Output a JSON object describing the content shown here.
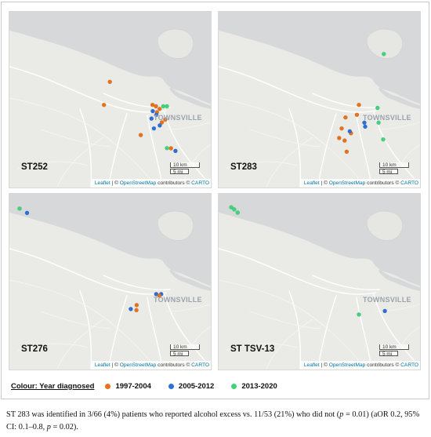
{
  "colors": {
    "1997-2004": "#e8711c",
    "2005-2012": "#2d6fd6",
    "2013-2020": "#3fd47a",
    "water": "#d7d9db",
    "land": "#eaeae7",
    "road": "#ffffff",
    "city_label": "#9aa4ad"
  },
  "panels": [
    {
      "id": "st252",
      "label": "ST252",
      "city_label": "TOWNSVILLE",
      "scale": {
        "km": "10 km",
        "mi": "5 mi"
      },
      "attribution": {
        "leaflet": "Leaflet",
        "osm": "OpenStreetMap",
        "rest": "contributors ©",
        "carto": "CARTO"
      },
      "points": [
        {
          "period": "1997-2004",
          "x": 0.495,
          "y": 0.395
        },
        {
          "period": "1997-2004",
          "x": 0.466,
          "y": 0.525
        },
        {
          "period": "1997-2004",
          "x": 0.705,
          "y": 0.525
        },
        {
          "period": "1997-2004",
          "x": 0.722,
          "y": 0.533
        },
        {
          "period": "1997-2004",
          "x": 0.74,
          "y": 0.548
        },
        {
          "period": "1997-2004",
          "x": 0.727,
          "y": 0.567
        },
        {
          "period": "1997-2004",
          "x": 0.768,
          "y": 0.608
        },
        {
          "period": "1997-2004",
          "x": 0.751,
          "y": 0.624
        },
        {
          "period": "1997-2004",
          "x": 0.647,
          "y": 0.695
        },
        {
          "period": "1997-2004",
          "x": 0.796,
          "y": 0.77
        },
        {
          "period": "2005-2012",
          "x": 0.706,
          "y": 0.56
        },
        {
          "period": "2005-2012",
          "x": 0.724,
          "y": 0.581
        },
        {
          "period": "2005-2012",
          "x": 0.7,
          "y": 0.602
        },
        {
          "period": "2005-2012",
          "x": 0.741,
          "y": 0.641
        },
        {
          "period": "2005-2012",
          "x": 0.712,
          "y": 0.658
        },
        {
          "period": "2005-2012",
          "x": 0.818,
          "y": 0.785
        },
        {
          "period": "2013-2020",
          "x": 0.758,
          "y": 0.533
        },
        {
          "period": "2013-2020",
          "x": 0.776,
          "y": 0.533
        },
        {
          "period": "2013-2020",
          "x": 0.776,
          "y": 0.769
        }
      ]
    },
    {
      "id": "st283",
      "label": "ST283",
      "city_label": "TOWNSVILLE",
      "scale": {
        "km": "10 km",
        "mi": "5 mi"
      },
      "attribution": {
        "leaflet": "Leaflet",
        "osm": "OpenStreetMap",
        "rest": "contributors ©",
        "carto": "CARTO"
      },
      "points": [
        {
          "period": "1997-2004",
          "x": 0.691,
          "y": 0.525
        },
        {
          "period": "1997-2004",
          "x": 0.625,
          "y": 0.596
        },
        {
          "period": "1997-2004",
          "x": 0.681,
          "y": 0.581
        },
        {
          "period": "1997-2004",
          "x": 0.606,
          "y": 0.658
        },
        {
          "period": "1997-2004",
          "x": 0.594,
          "y": 0.712
        },
        {
          "period": "1997-2004",
          "x": 0.652,
          "y": 0.685
        },
        {
          "period": "1997-2004",
          "x": 0.621,
          "y": 0.726
        },
        {
          "period": "1997-2004",
          "x": 0.631,
          "y": 0.789
        },
        {
          "period": "2005-2012",
          "x": 0.646,
          "y": 0.674
        },
        {
          "period": "2005-2012",
          "x": 0.718,
          "y": 0.625
        },
        {
          "period": "2005-2012",
          "x": 0.722,
          "y": 0.648
        },
        {
          "period": "2013-2020",
          "x": 0.814,
          "y": 0.238
        },
        {
          "period": "2013-2020",
          "x": 0.783,
          "y": 0.542
        },
        {
          "period": "2013-2020",
          "x": 0.788,
          "y": 0.625
        },
        {
          "period": "2013-2020",
          "x": 0.811,
          "y": 0.72
        }
      ]
    },
    {
      "id": "st276",
      "label": "ST276",
      "city_label": "TOWNSVILLE",
      "scale": {
        "km": "10 km",
        "mi": "5 mi"
      },
      "attribution": {
        "leaflet": "Leaflet",
        "osm": "OpenStreetMap",
        "rest": "contributors ©",
        "carto": "CARTO"
      },
      "points": [
        {
          "period": "2013-2020",
          "x": 0.05,
          "y": 0.083
        },
        {
          "period": "2005-2012",
          "x": 0.087,
          "y": 0.108
        },
        {
          "period": "2005-2012",
          "x": 0.723,
          "y": 0.566
        },
        {
          "period": "2005-2012",
          "x": 0.748,
          "y": 0.566
        },
        {
          "period": "1997-2004",
          "x": 0.739,
          "y": 0.574
        },
        {
          "period": "1997-2004",
          "x": 0.627,
          "y": 0.628
        },
        {
          "period": "2005-2012",
          "x": 0.598,
          "y": 0.65
        },
        {
          "period": "1997-2004",
          "x": 0.626,
          "y": 0.656
        }
      ]
    },
    {
      "id": "st-tsv-13",
      "label": "ST TSV-13",
      "city_label": "TOWNSVILLE",
      "scale": {
        "km": "10 km",
        "mi": "5 mi"
      },
      "attribution": {
        "leaflet": "Leaflet",
        "osm": "OpenStreetMap",
        "rest": "contributors ©",
        "carto": "CARTO"
      },
      "points": [
        {
          "period": "2013-2020",
          "x": 0.062,
          "y": 0.076
        },
        {
          "period": "2013-2020",
          "x": 0.077,
          "y": 0.088
        },
        {
          "period": "2013-2020",
          "x": 0.094,
          "y": 0.106
        },
        {
          "period": "2013-2020",
          "x": 0.691,
          "y": 0.681
        },
        {
          "period": "2005-2012",
          "x": 0.819,
          "y": 0.661
        }
      ]
    }
  ],
  "legend": {
    "title": "Colour: Year diagnosed",
    "items": [
      {
        "label": "1997-2004",
        "period": "1997-2004"
      },
      {
        "label": "2005-2012",
        "period": "2005-2012"
      },
      {
        "label": "2013-2020",
        "period": "2013-2020"
      }
    ]
  },
  "caption": "ST 283 was identified in 3/66 (4%) patients who reported alcohol excess vs. 11/53 (21%) who did not (p = 0.01) (aOR 0.2, 95% CI: 0.1–0.8, p = 0.02)."
}
